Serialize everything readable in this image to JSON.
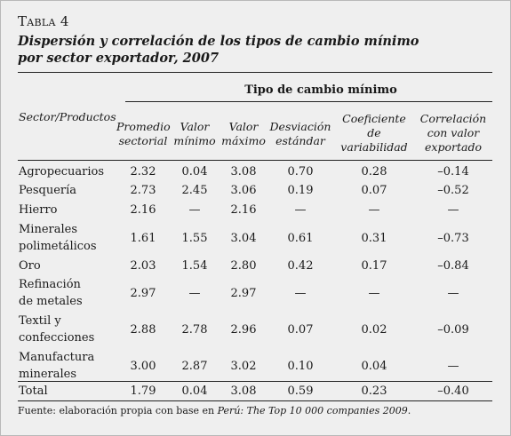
{
  "table_label": "Tabla 4",
  "title_line1": "Dispersión y correlación de los tipos de cambio mínimo",
  "title_line2": "por sector exportador, 2007",
  "group_header": "Tipo de cambio mínimo",
  "row_header": "Sector/Productos",
  "columns": [
    {
      "line1": "Promedio",
      "line2": "sectorial"
    },
    {
      "line1": "Valor",
      "line2": "mínimo"
    },
    {
      "line1": "Valor",
      "line2": "máximo"
    },
    {
      "line1": "Desviación",
      "line2": "estándar"
    },
    {
      "line1": "Coeficiente",
      "line2": "de",
      "line3": "variabilidad"
    },
    {
      "line1": "Correlación",
      "line2": "con valor",
      "line3": "exportado"
    }
  ],
  "rows": [
    {
      "label1": "Agropecuarios",
      "label2": "",
      "values": [
        "2.32",
        "0.04",
        "3.08",
        "0.70",
        "0.28",
        "–0.14"
      ]
    },
    {
      "label1": "Pesquería",
      "label2": "",
      "values": [
        "2.73",
        "2.45",
        "3.06",
        "0.19",
        "0.07",
        "–0.52"
      ]
    },
    {
      "label1": "Hierro",
      "label2": "",
      "values": [
        "2.16",
        "—",
        "2.16",
        "—",
        "—",
        "—"
      ]
    },
    {
      "label1": "Minerales",
      "label2": "polimetálicos",
      "values": [
        "1.61",
        "1.55",
        "3.04",
        "0.61",
        "0.31",
        "–0.73"
      ]
    },
    {
      "label1": "Oro",
      "label2": "",
      "values": [
        "2.03",
        "1.54",
        "2.80",
        "0.42",
        "0.17",
        "–0.84"
      ]
    },
    {
      "label1": "Refinación",
      "label2": "de metales",
      "values": [
        "2.97",
        "—",
        "2.97",
        "—",
        "—",
        "—"
      ]
    },
    {
      "label1": "Textil y",
      "label2": "confecciones",
      "values": [
        "2.88",
        "2.78",
        "2.96",
        "0.07",
        "0.02",
        "–0.09"
      ]
    },
    {
      "label1": "Manufactura",
      "label2": "minerales",
      "values": [
        "3.00",
        "2.87",
        "3.02",
        "0.10",
        "0.04",
        "—"
      ]
    },
    {
      "label1": "Total",
      "label2": "",
      "values": [
        "1.79",
        "0.04",
        "3.08",
        "0.59",
        "0.23",
        "–0.40"
      ]
    }
  ],
  "footnote_prefix": "Fuente: elaboración propia con base en ",
  "footnote_italic": "Perú: The Top 10 000 companies 2009",
  "footnote_suffix": "."
}
